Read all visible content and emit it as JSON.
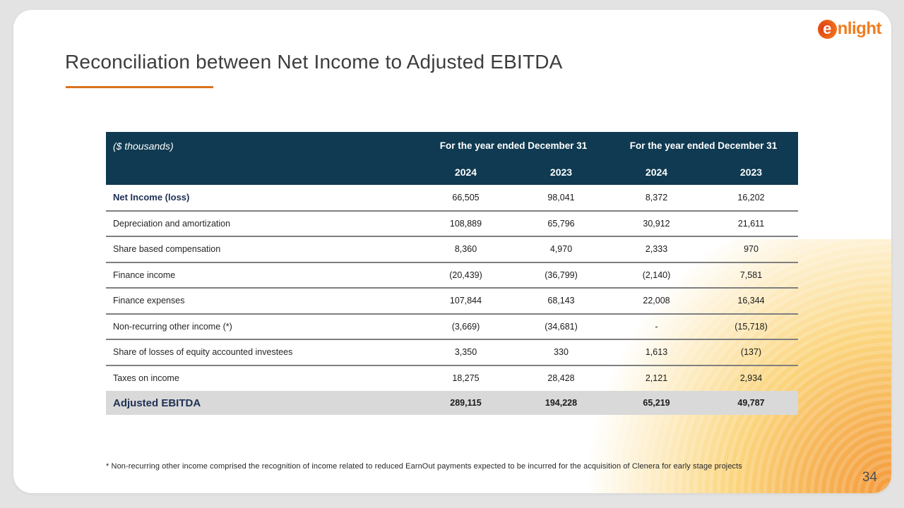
{
  "logo": {
    "mark": "e",
    "text": "nlight"
  },
  "title": {
    "text": "Reconciliation between Net Income to Adjusted EBITDA"
  },
  "table": {
    "unit_label": "($ thousands)",
    "group_headers": [
      "For the year ended December 31",
      "For the year ended December 31"
    ],
    "year_headers": [
      "2024",
      "2023",
      "2024",
      "2023"
    ],
    "rows": [
      {
        "label": "Net Income (loss)",
        "values": [
          "66,505",
          "98,041",
          "8,372",
          "16,202"
        ]
      },
      {
        "label": "Depreciation and amortization",
        "values": [
          "108,889",
          "65,796",
          "30,912",
          "21,611"
        ]
      },
      {
        "label": "Share based compensation",
        "values": [
          "8,360",
          "4,970",
          "2,333",
          "970"
        ]
      },
      {
        "label": "Finance income",
        "values": [
          "(20,439)",
          "(36,799)",
          "(2,140)",
          "7,581"
        ]
      },
      {
        "label": "Finance expenses",
        "values": [
          "107,844",
          "68,143",
          "22,008",
          "16,344"
        ]
      },
      {
        "label": "Non-recurring other income (*)",
        "values": [
          "(3,669)",
          "(34,681)",
          "-",
          "(15,718)"
        ]
      },
      {
        "label": "Share of losses of equity accounted investees",
        "values": [
          "3,350",
          "330",
          "1,613",
          "(137)"
        ]
      },
      {
        "label": "Taxes on income",
        "values": [
          "18,275",
          "28,428",
          "2,121",
          "2,934"
        ]
      },
      {
        "label": "Adjusted EBITDA",
        "values": [
          "289,115",
          "194,228",
          "65,219",
          "49,787"
        ]
      }
    ]
  },
  "footnote": "* Non-recurring other income comprised the recognition of income related to reduced EarnOut payments expected to be incurred for the acquisition of Clenera for early stage projects",
  "page": {
    "number": "34"
  },
  "colors": {
    "header_bar": "#0f3a51",
    "accent_orange": "#d9721f",
    "logo_orange": "#f07d1f",
    "total_row_bg": "#d9d9d9",
    "row_separator": "#7f7f7f",
    "glow_orange": "#f49a3c"
  }
}
